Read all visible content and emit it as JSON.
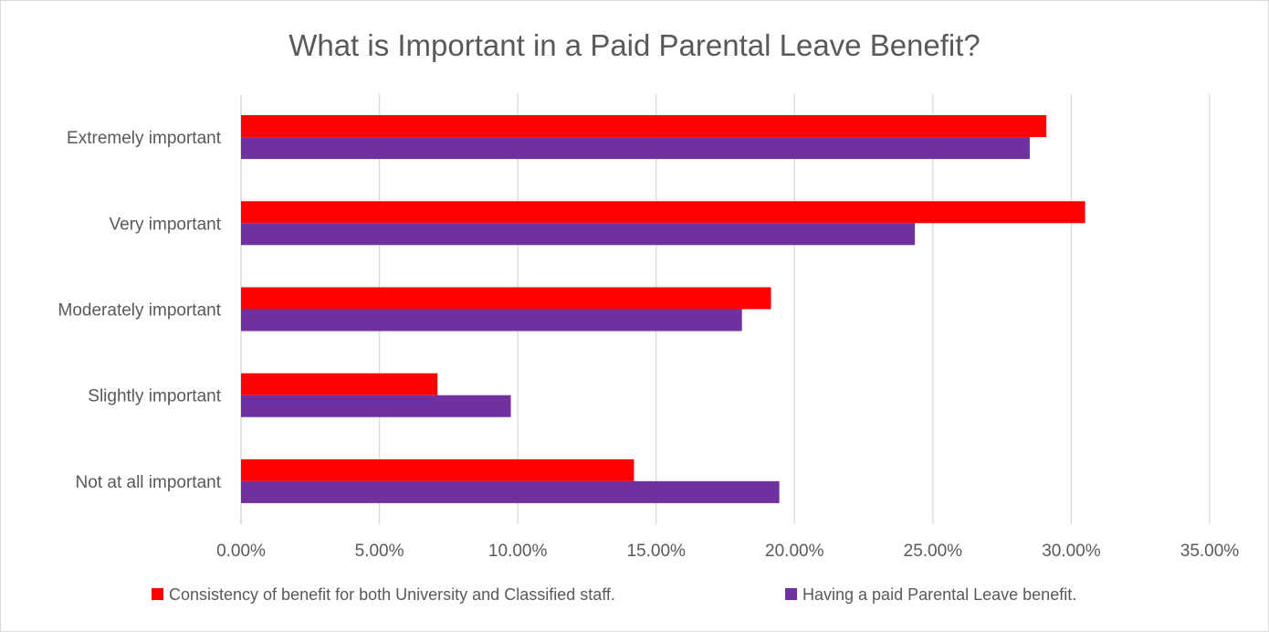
{
  "chart_data": {
    "type": "bar",
    "orientation": "horizontal",
    "title": "What is Important in a Paid Parental Leave Benefit?",
    "categories": [
      "Extremely important",
      "Very important",
      "Moderately important",
      "Slightly important",
      "Not at all important"
    ],
    "series": [
      {
        "name": "Consistency of benefit for both University and Classified staff.",
        "color": "#ff0000",
        "values": [
          29.1,
          30.5,
          19.15,
          7.1,
          14.2
        ]
      },
      {
        "name": "Having a paid Parental Leave benefit.",
        "color": "#7030a0",
        "values": [
          28.5,
          24.35,
          18.1,
          9.75,
          19.45
        ]
      }
    ],
    "xlim": [
      0,
      35
    ],
    "xticks": [
      0,
      5,
      10,
      15,
      20,
      25,
      30,
      35
    ],
    "xtick_labels": [
      "0.00%",
      "5.00%",
      "10.00%",
      "15.00%",
      "20.00%",
      "25.00%",
      "30.00%",
      "35.00%"
    ],
    "grid": true,
    "legend_position": "bottom"
  }
}
